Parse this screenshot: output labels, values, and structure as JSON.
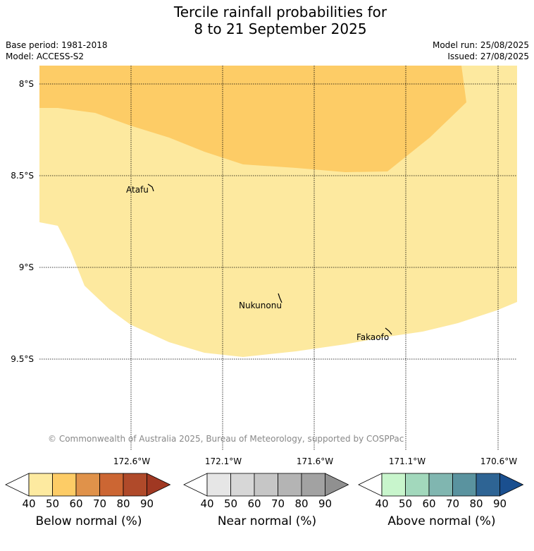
{
  "title": {
    "line1": "Tercile rainfall probabilities for",
    "line2": "8 to 21 September 2025"
  },
  "meta": {
    "base_period": "Base period: 1981-2018",
    "model": "Model: ACCESS-S2",
    "model_run": "Model run: 25/08/2025",
    "issued": "Issued: 27/08/2025"
  },
  "map": {
    "lat_labels": [
      "8°S",
      "8.5°S",
      "9°S",
      "9.5°S"
    ],
    "lon_labels": [
      "172.6°W",
      "172.1°W",
      "171.6°W",
      "171.1°W",
      "170.6°W"
    ],
    "places": [
      "Atafu",
      "Nukunonu",
      "Fakaofo"
    ],
    "copyright": "© Commonwealth of Australia 2025, Bureau of Meteorology, supported by COSPPac",
    "colors": {
      "below_40_50": "#fde99f",
      "below_50_60": "#fdcc66"
    }
  },
  "colorbars": [
    {
      "label": "Below normal (%)",
      "ticks": [
        "40",
        "50",
        "60",
        "70",
        "80",
        "90"
      ],
      "colors": [
        "#fdeaa0",
        "#fdcc66",
        "#e0924a",
        "#cc6633",
        "#b04a2a",
        "#a03822"
      ]
    },
    {
      "label": "Near normal (%)",
      "ticks": [
        "40",
        "50",
        "60",
        "70",
        "80",
        "90"
      ],
      "colors": [
        "#e6e6e6",
        "#d7d7d7",
        "#c6c6c6",
        "#b4b4b4",
        "#a2a2a2",
        "#909090"
      ]
    },
    {
      "label": "Above normal (%)",
      "ticks": [
        "40",
        "50",
        "60",
        "70",
        "80",
        "90"
      ],
      "colors": [
        "#c8f5cc",
        "#a2d8bc",
        "#80b6b0",
        "#5a939f",
        "#2e6494",
        "#1a4f8f"
      ]
    }
  ]
}
